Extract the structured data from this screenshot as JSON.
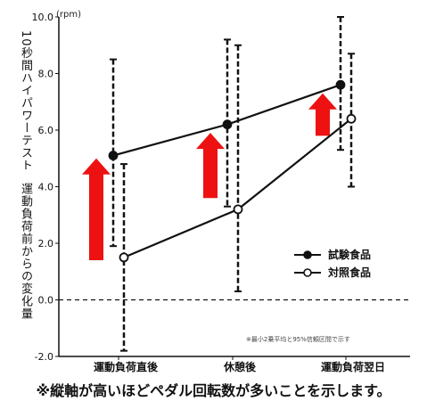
{
  "chart_data": {
    "type": "line",
    "categories": [
      "運動負荷直後",
      "休憩後",
      "運動負荷翌日"
    ],
    "unit": "(rpm)",
    "ylabel_line1": "10秒間ハイパワーテスト",
    "ylabel_line2": "運動負荷前からの変化量",
    "ylim": [
      -2.0,
      10.0
    ],
    "yticks": [
      "-2.0",
      "0.0",
      "2.0",
      "4.0",
      "6.0",
      "8.0",
      "10.0"
    ],
    "series": [
      {
        "name": "試験食品",
        "marker": "filled",
        "values": [
          5.1,
          6.2,
          7.6
        ],
        "err_low": [
          1.9,
          3.3,
          5.3
        ],
        "err_high": [
          8.5,
          9.2,
          10.0
        ]
      },
      {
        "name": "対照食品",
        "marker": "open",
        "values": [
          1.5,
          3.2,
          6.4
        ],
        "err_low": [
          -1.8,
          0.3,
          4.0
        ],
        "err_high": [
          4.8,
          9.0,
          8.7
        ]
      }
    ],
    "baseline": 0.0,
    "arrows_color": "#ee1111",
    "legend_position": "right-lower",
    "footnote": "※最小2乗平均と95%信頼区間で示す"
  },
  "caption": "※縦軸が高いほどペダル回転数が多いことを示します。"
}
